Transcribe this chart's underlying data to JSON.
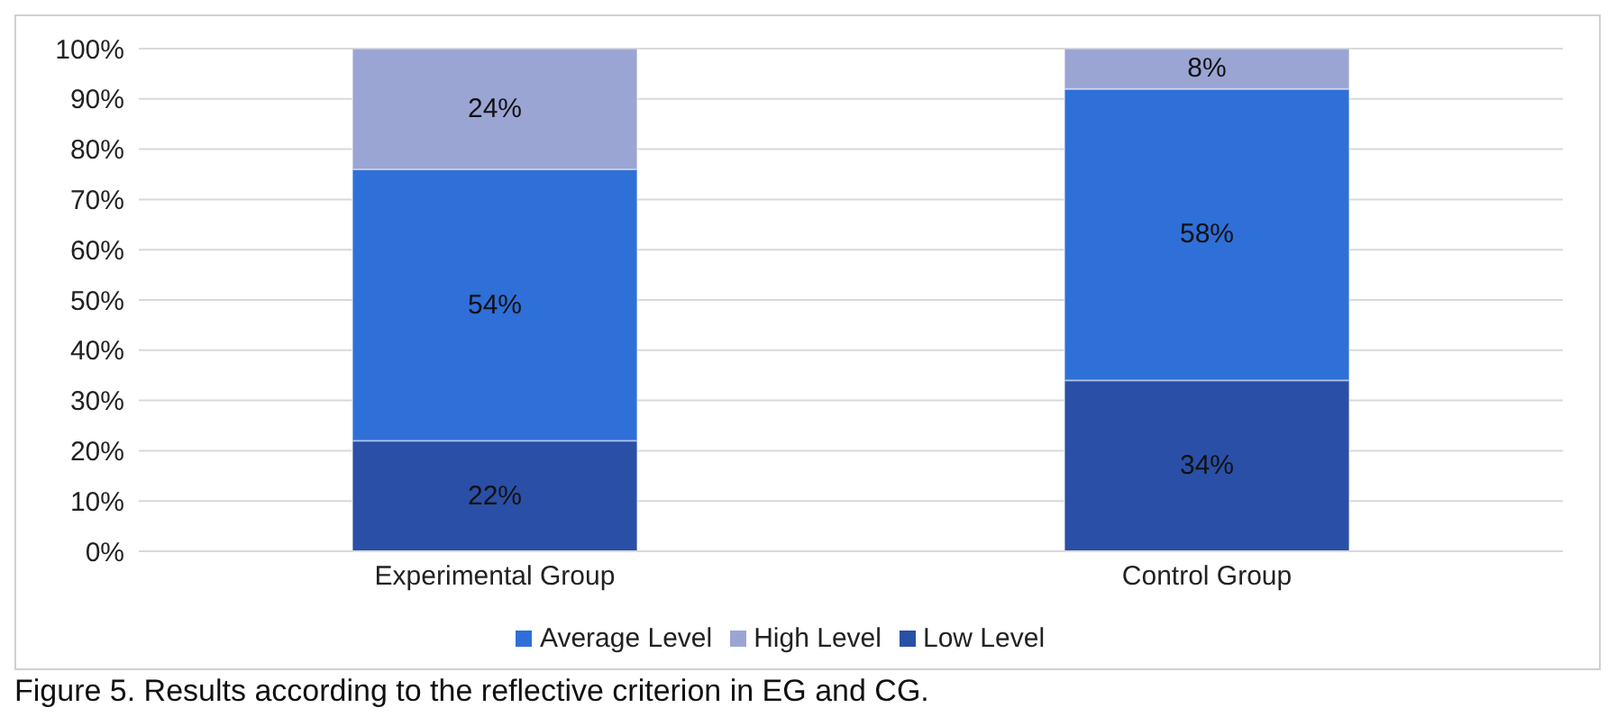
{
  "chart_data": {
    "type": "bar",
    "stacked": true,
    "categories": [
      "Experimental Group",
      "Control Group"
    ],
    "series": [
      {
        "name": "Low Level",
        "color": "#2a4fa6",
        "values": [
          22,
          34
        ],
        "value_labels": [
          "22%",
          "34%"
        ]
      },
      {
        "name": "Average Level",
        "color": "#2f6fd8",
        "values": [
          54,
          58
        ],
        "value_labels": [
          "54%",
          "58%"
        ]
      },
      {
        "name": "High Level",
        "color": "#9ba5d4",
        "values": [
          24,
          8
        ],
        "value_labels": [
          "24%",
          "8%"
        ]
      }
    ],
    "ylim": [
      0,
      100
    ],
    "yticks": [
      {
        "value": 0,
        "label": "0%"
      },
      {
        "value": 10,
        "label": "10%"
      },
      {
        "value": 20,
        "label": "20%"
      },
      {
        "value": 30,
        "label": "30%"
      },
      {
        "value": 40,
        "label": "40%"
      },
      {
        "value": 50,
        "label": "50%"
      },
      {
        "value": 60,
        "label": "60%"
      },
      {
        "value": 70,
        "label": "70%"
      },
      {
        "value": 80,
        "label": "80%"
      },
      {
        "value": 90,
        "label": "90%"
      },
      {
        "value": 100,
        "label": "100%"
      }
    ],
    "grid": "y",
    "legend": "bottom",
    "annotations": [
      "Figure 5. Results according to the reflective criterion in EG and CG."
    ]
  }
}
